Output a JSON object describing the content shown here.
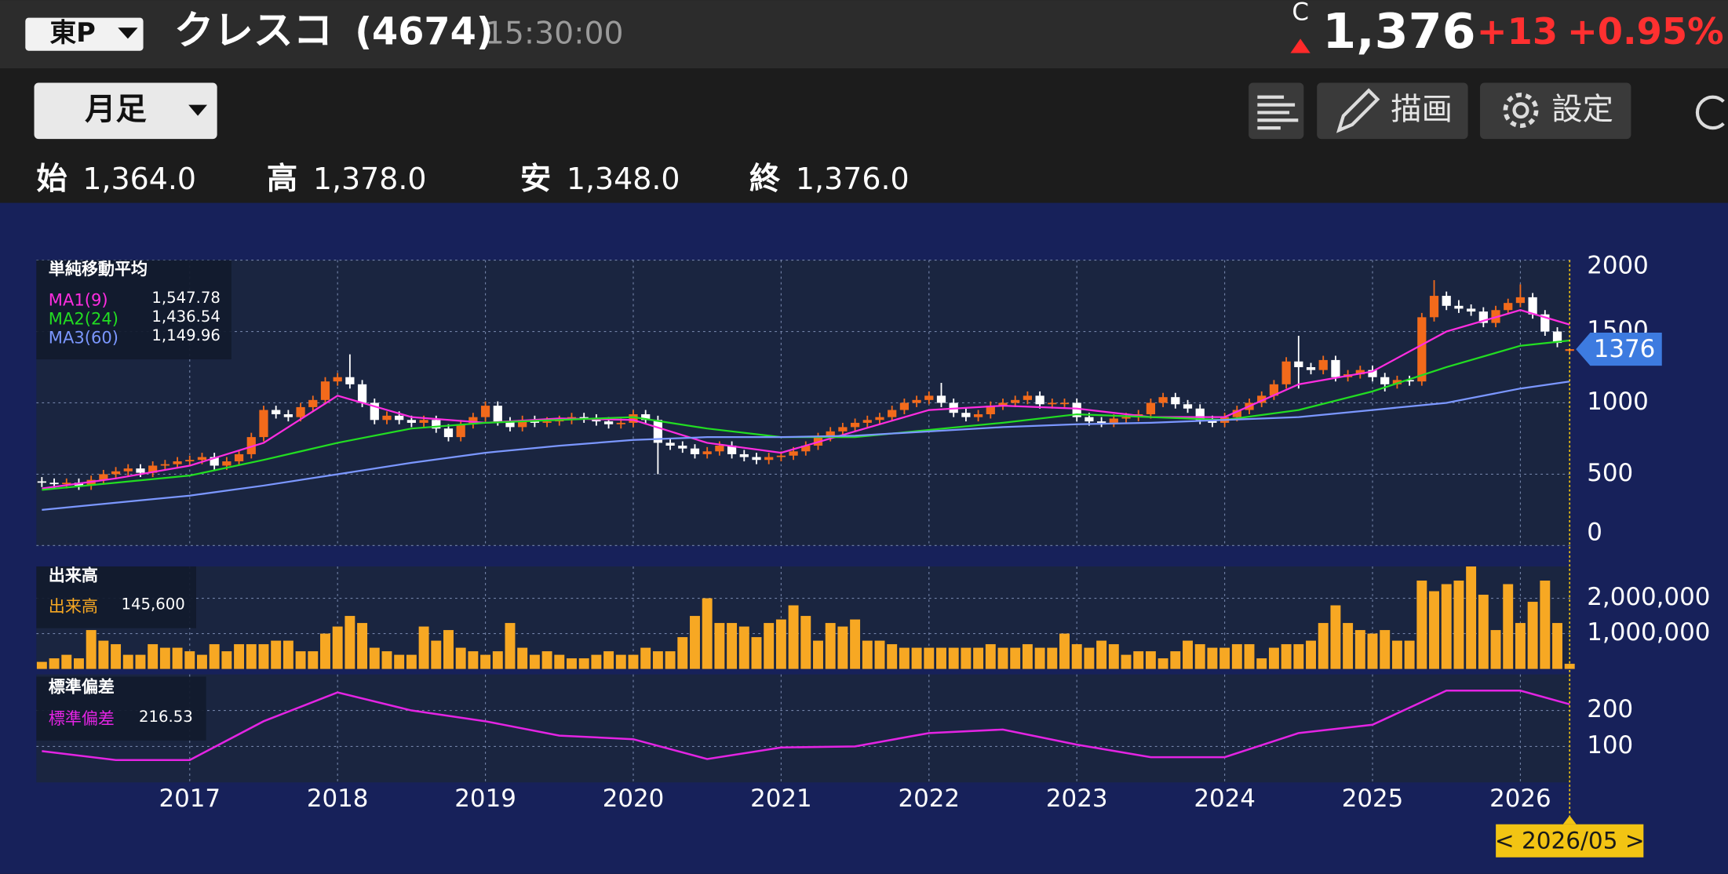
{
  "header": {
    "market": "東P",
    "name": "クレスコ",
    "code": "(4674)",
    "time": "15:30:00",
    "price_type": "C",
    "price": "1,376",
    "change": "+13",
    "change_pct": "+0.95%",
    "period": "月足",
    "buttons": [
      "描画",
      "設定"
    ],
    "ohlc": [
      {
        "label": "始",
        "value": "1,364.0"
      },
      {
        "label": "高",
        "value": "1,378.0"
      },
      {
        "label": "安",
        "value": "1,348.0"
      },
      {
        "label": "終",
        "value": "1,376.0"
      }
    ]
  },
  "chart_data": [
    {
      "type": "candlestick",
      "title": "単純移動平均",
      "up_color": "#f26a1b",
      "down_color": "#ffffff",
      "ylim": [
        0,
        2000
      ],
      "yticks": [
        0,
        500,
        1000,
        1500,
        2000
      ],
      "grid": true,
      "x": [
        "2016-01",
        "2016-02",
        "2016-03",
        "2016-04",
        "2016-05",
        "2016-06",
        "2016-07",
        "2016-08",
        "2016-09",
        "2016-10",
        "2016-11",
        "2016-12",
        "2017-01",
        "2017-02",
        "2017-03",
        "2017-04",
        "2017-05",
        "2017-06",
        "2017-07",
        "2017-08",
        "2017-09",
        "2017-10",
        "2017-11",
        "2017-12",
        "2018-01",
        "2018-02",
        "2018-03",
        "2018-04",
        "2018-05",
        "2018-06",
        "2018-07",
        "2018-08",
        "2018-09",
        "2018-10",
        "2018-11",
        "2018-12",
        "2019-01",
        "2019-02",
        "2019-03",
        "2019-04",
        "2019-05",
        "2019-06",
        "2019-07",
        "2019-08",
        "2019-09",
        "2019-10",
        "2019-11",
        "2019-12",
        "2020-01",
        "2020-02",
        "2020-03",
        "2020-04",
        "2020-05",
        "2020-06",
        "2020-07",
        "2020-08",
        "2020-09",
        "2020-10",
        "2020-11",
        "2020-12",
        "2021-01",
        "2021-02",
        "2021-03",
        "2021-04",
        "2021-05",
        "2021-06",
        "2021-07",
        "2021-08",
        "2021-09",
        "2021-10",
        "2021-11",
        "2021-12",
        "2022-01",
        "2022-02",
        "2022-03",
        "2022-04",
        "2022-05",
        "2022-06",
        "2022-07",
        "2022-08",
        "2022-09",
        "2022-10",
        "2022-11",
        "2022-12",
        "2023-01",
        "2023-02",
        "2023-03",
        "2023-04",
        "2023-05",
        "2023-06",
        "2023-07",
        "2023-08",
        "2023-09",
        "2023-10",
        "2023-11",
        "2023-12",
        "2024-01",
        "2024-02",
        "2024-03",
        "2024-04",
        "2024-05",
        "2024-06",
        "2024-07",
        "2024-08",
        "2024-09",
        "2024-10",
        "2024-11",
        "2024-12",
        "2025-01",
        "2025-02",
        "2025-03",
        "2025-04",
        "2025-05",
        "2025-06",
        "2025-07",
        "2025-08",
        "2025-09",
        "2025-10",
        "2025-11",
        "2025-12",
        "2026-01",
        "2026-02",
        "2026-03",
        "2026-04",
        "2026-05"
      ],
      "open": [
        450,
        440,
        430,
        440,
        420,
        460,
        500,
        520,
        540,
        510,
        560,
        570,
        590,
        600,
        620,
        560,
        590,
        640,
        760,
        950,
        920,
        900,
        970,
        1020,
        1150,
        1180,
        1130,
        1000,
        880,
        910,
        880,
        860,
        880,
        820,
        760,
        850,
        900,
        980,
        870,
        830,
        880,
        860,
        870,
        880,
        900,
        890,
        870,
        850,
        860,
        920,
        880,
        720,
        700,
        680,
        640,
        660,
        700,
        640,
        620,
        600,
        620,
        630,
        660,
        700,
        760,
        800,
        830,
        860,
        880,
        900,
        950,
        1000,
        1020,
        1050,
        1000,
        930,
        900,
        920,
        980,
        1000,
        1020,
        1050,
        990,
        1000,
        1000,
        900,
        870,
        860,
        890,
        900,
        920,
        1000,
        1040,
        990,
        960,
        880,
        860,
        900,
        950,
        1000,
        1050,
        1130,
        1290,
        1250,
        1230,
        1300,
        1180,
        1200,
        1230,
        1180,
        1130,
        1160,
        1150,
        1600,
        1750,
        1680,
        1660,
        1640,
        1560,
        1650,
        1700,
        1740,
        1620,
        1500,
        1364
      ],
      "high": [
        480,
        470,
        470,
        470,
        490,
        530,
        550,
        570,
        570,
        590,
        600,
        620,
        630,
        650,
        650,
        620,
        670,
        790,
        980,
        980,
        950,
        1000,
        1050,
        1180,
        1210,
        1340,
        1160,
        1030,
        940,
        940,
        910,
        910,
        910,
        850,
        880,
        930,
        1010,
        1010,
        900,
        910,
        910,
        900,
        910,
        930,
        930,
        920,
        900,
        890,
        950,
        950,
        910,
        750,
        730,
        710,
        690,
        730,
        730,
        670,
        650,
        650,
        660,
        690,
        730,
        790,
        830,
        860,
        890,
        910,
        930,
        980,
        1030,
        1050,
        1080,
        1140,
        1030,
        960,
        950,
        1010,
        1030,
        1050,
        1080,
        1080,
        1030,
        1030,
        1030,
        930,
        900,
        920,
        930,
        950,
        1030,
        1070,
        1070,
        1020,
        990,
        910,
        930,
        980,
        1030,
        1080,
        1160,
        1320,
        1470,
        1280,
        1330,
        1330,
        1230,
        1260,
        1260,
        1210,
        1190,
        1190,
        1630,
        1860,
        1780,
        1720,
        1690,
        1670,
        1680,
        1730,
        1830,
        1770,
        1650,
        1530,
        1378
      ],
      "low": [
        410,
        400,
        400,
        390,
        390,
        430,
        470,
        490,
        480,
        480,
        530,
        540,
        560,
        570,
        530,
        530,
        560,
        610,
        730,
        890,
        870,
        870,
        940,
        990,
        1120,
        1100,
        970,
        850,
        850,
        850,
        830,
        830,
        790,
        730,
        730,
        820,
        870,
        840,
        800,
        800,
        830,
        830,
        840,
        850,
        860,
        840,
        820,
        820,
        830,
        850,
        500,
        670,
        650,
        610,
        610,
        630,
        610,
        590,
        570,
        570,
        590,
        600,
        630,
        670,
        730,
        770,
        800,
        830,
        850,
        870,
        920,
        970,
        990,
        970,
        900,
        870,
        870,
        890,
        950,
        970,
        990,
        960,
        960,
        970,
        870,
        840,
        830,
        830,
        860,
        870,
        890,
        970,
        960,
        930,
        850,
        830,
        830,
        870,
        920,
        970,
        1020,
        1100,
        1100,
        1200,
        1200,
        1150,
        1150,
        1170,
        1150,
        1080,
        1100,
        1120,
        1120,
        1570,
        1650,
        1630,
        1610,
        1530,
        1530,
        1620,
        1670,
        1590,
        1470,
        1390,
        1348
      ],
      "close": [
        440,
        430,
        440,
        420,
        460,
        500,
        520,
        540,
        510,
        560,
        570,
        590,
        600,
        620,
        560,
        590,
        640,
        760,
        950,
        920,
        900,
        970,
        1020,
        1150,
        1180,
        1130,
        1000,
        880,
        910,
        880,
        860,
        880,
        820,
        760,
        850,
        900,
        980,
        870,
        830,
        880,
        860,
        870,
        880,
        900,
        890,
        870,
        850,
        860,
        920,
        880,
        720,
        700,
        680,
        640,
        660,
        700,
        640,
        620,
        600,
        620,
        630,
        660,
        700,
        760,
        800,
        830,
        860,
        880,
        900,
        950,
        1000,
        1020,
        1050,
        1000,
        930,
        900,
        920,
        980,
        1000,
        1020,
        1050,
        990,
        1000,
        1000,
        900,
        870,
        860,
        890,
        900,
        920,
        1000,
        1040,
        990,
        960,
        880,
        860,
        900,
        950,
        1000,
        1050,
        1130,
        1290,
        1250,
        1230,
        1300,
        1180,
        1200,
        1230,
        1180,
        1130,
        1160,
        1150,
        1600,
        1750,
        1680,
        1660,
        1640,
        1560,
        1650,
        1700,
        1740,
        1620,
        1500,
        1420,
        1376
      ],
      "lines": {
        "x": [
          "2016-01",
          "2016-07",
          "2017-01",
          "2017-07",
          "2018-01",
          "2018-07",
          "2019-01",
          "2019-07",
          "2020-01",
          "2020-07",
          "2021-01",
          "2021-07",
          "2022-01",
          "2022-07",
          "2023-01",
          "2023-07",
          "2024-01",
          "2024-07",
          "2025-01",
          "2025-07",
          "2026-01",
          "2026-05"
        ],
        "series": [
          {
            "name": "MA1(9)",
            "color": "#ff2de0",
            "last_label": "1,547.78",
            "values": [
              400,
              470,
              560,
              720,
              1050,
              900,
              860,
              890,
              880,
              720,
              650,
              800,
              950,
              980,
              960,
              900,
              900,
              1130,
              1220,
              1500,
              1650,
              1548
            ]
          },
          {
            "name": "MA2(24)",
            "color": "#22dd22",
            "last_label": "1,436.54",
            "values": [
              390,
              440,
              490,
              600,
              720,
              820,
              860,
              880,
              900,
              820,
              760,
              760,
              810,
              860,
              920,
              900,
              880,
              950,
              1080,
              1250,
              1400,
              1437
            ]
          },
          {
            "name": "MA3(60)",
            "color": "#7b97ff",
            "last_label": "1,149.96",
            "values": [
              250,
              300,
              350,
              420,
              500,
              580,
              650,
              700,
              740,
              760,
              760,
              770,
              800,
              830,
              850,
              860,
              880,
              900,
              950,
              1000,
              1100,
              1150
            ]
          }
        ]
      }
    },
    {
      "type": "bar",
      "title": "出来高",
      "name": "出来高",
      "color": "#f7a823",
      "last_label": "145,600",
      "ylim": [
        0,
        2900000
      ],
      "yticks": [
        {
          "value": 1000000,
          "label": "1,000,000"
        },
        {
          "value": 2000000,
          "label": "2,000,000"
        }
      ],
      "grid": true,
      "x": [
        "2016-01",
        "2016-02",
        "2016-03",
        "2016-04",
        "2016-05",
        "2016-06",
        "2016-07",
        "2016-08",
        "2016-09",
        "2016-10",
        "2016-11",
        "2016-12",
        "2017-01",
        "2017-02",
        "2017-03",
        "2017-04",
        "2017-05",
        "2017-06",
        "2017-07",
        "2017-08",
        "2017-09",
        "2017-10",
        "2017-11",
        "2017-12",
        "2018-01",
        "2018-02",
        "2018-03",
        "2018-04",
        "2018-05",
        "2018-06",
        "2018-07",
        "2018-08",
        "2018-09",
        "2018-10",
        "2018-11",
        "2018-12",
        "2019-01",
        "2019-02",
        "2019-03",
        "2019-04",
        "2019-05",
        "2019-06",
        "2019-07",
        "2019-08",
        "2019-09",
        "2019-10",
        "2019-11",
        "2019-12",
        "2020-01",
        "2020-02",
        "2020-03",
        "2020-04",
        "2020-05",
        "2020-06",
        "2020-07",
        "2020-08",
        "2020-09",
        "2020-10",
        "2020-11",
        "2020-12",
        "2021-01",
        "2021-02",
        "2021-03",
        "2021-04",
        "2021-05",
        "2021-06",
        "2021-07",
        "2021-08",
        "2021-09",
        "2021-10",
        "2021-11",
        "2021-12",
        "2022-01",
        "2022-02",
        "2022-03",
        "2022-04",
        "2022-05",
        "2022-06",
        "2022-07",
        "2022-08",
        "2022-09",
        "2022-10",
        "2022-11",
        "2022-12",
        "2023-01",
        "2023-02",
        "2023-03",
        "2023-04",
        "2023-05",
        "2023-06",
        "2023-07",
        "2023-08",
        "2023-09",
        "2023-10",
        "2023-11",
        "2023-12",
        "2024-01",
        "2024-02",
        "2024-03",
        "2024-04",
        "2024-05",
        "2024-06",
        "2024-07",
        "2024-08",
        "2024-09",
        "2024-10",
        "2024-11",
        "2024-12",
        "2025-01",
        "2025-02",
        "2025-03",
        "2025-04",
        "2025-05",
        "2025-06",
        "2025-07",
        "2025-08",
        "2025-09",
        "2025-10",
        "2025-11",
        "2025-12",
        "2026-01",
        "2026-02",
        "2026-03",
        "2026-04",
        "2026-05"
      ],
      "values": [
        200000,
        300000,
        400000,
        300000,
        1100000,
        800000,
        700000,
        400000,
        400000,
        700000,
        600000,
        600000,
        500000,
        400000,
        700000,
        500000,
        700000,
        700000,
        700000,
        800000,
        800000,
        500000,
        500000,
        1000000,
        1200000,
        1500000,
        1300000,
        600000,
        500000,
        400000,
        400000,
        1200000,
        800000,
        1100000,
        600000,
        500000,
        400000,
        500000,
        1300000,
        600000,
        400000,
        500000,
        400000,
        300000,
        300000,
        400000,
        500000,
        400000,
        400000,
        600000,
        500000,
        500000,
        900000,
        1500000,
        2000000,
        1300000,
        1300000,
        1200000,
        900000,
        1300000,
        1400000,
        1800000,
        1500000,
        800000,
        1300000,
        1200000,
        1400000,
        800000,
        800000,
        700000,
        600000,
        600000,
        600000,
        600000,
        600000,
        600000,
        600000,
        700000,
        600000,
        600000,
        700000,
        600000,
        600000,
        1000000,
        700000,
        600000,
        800000,
        700000,
        400000,
        500000,
        500000,
        300000,
        500000,
        800000,
        700000,
        600000,
        600000,
        700000,
        700000,
        300000,
        600000,
        700000,
        700000,
        800000,
        1300000,
        1800000,
        1300000,
        1100000,
        1000000,
        1100000,
        800000,
        800000,
        2500000,
        2200000,
        2400000,
        2500000,
        2900000,
        2100000,
        1100000,
        2400000,
        1300000,
        1900000,
        2500000,
        1300000,
        145600
      ]
    },
    {
      "type": "line",
      "title": "標準偏差",
      "ylim": [
        0,
        300
      ],
      "yticks": [
        100,
        200
      ],
      "grid": true,
      "cursor_label": "< 2026/05 >",
      "xticks": [
        {
          "value": "2017-01",
          "label": "2017"
        },
        {
          "value": "2018-01",
          "label": "2018"
        },
        {
          "value": "2019-01",
          "label": "2019"
        },
        {
          "value": "2020-01",
          "label": "2020"
        },
        {
          "value": "2021-01",
          "label": "2021"
        },
        {
          "value": "2022-01",
          "label": "2022"
        },
        {
          "value": "2023-01",
          "label": "2023"
        },
        {
          "value": "2024-01",
          "label": "2024"
        },
        {
          "value": "2025-01",
          "label": "2025"
        },
        {
          "value": "2026-01",
          "label": "2026"
        }
      ],
      "x": [
        "2016-01",
        "2016-07",
        "2017-01",
        "2017-07",
        "2018-01",
        "2018-07",
        "2019-01",
        "2019-07",
        "2020-01",
        "2020-07",
        "2021-01",
        "2021-07",
        "2022-01",
        "2022-07",
        "2023-01",
        "2023-07",
        "2024-01",
        "2024-07",
        "2025-01",
        "2025-07",
        "2026-01",
        "2026-05"
      ],
      "series": [
        {
          "name": "標準偏差",
          "color": "#e324e3",
          "last_label": "216.53",
          "values": [
            87,
            62,
            62,
            170,
            250,
            200,
            170,
            130,
            120,
            65,
            97,
            100,
            137,
            147,
            105,
            70,
            70,
            137,
            160,
            255,
            255,
            217
          ]
        }
      ]
    }
  ]
}
